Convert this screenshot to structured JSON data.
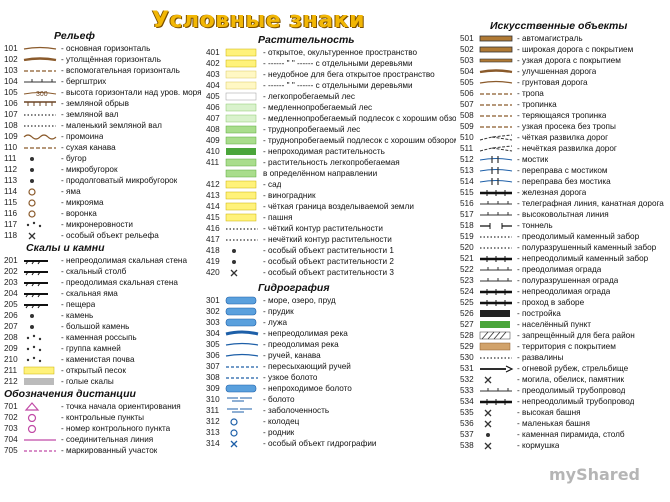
{
  "title": "Условные знаки",
  "watermark": "myShared",
  "colors": {
    "title": "#f2b705",
    "road": "#b07a35",
    "water": "#5aa0dd",
    "veg_light": "#fff27a",
    "veg_green": "#a9dd8c"
  },
  "relief": {
    "title": "Рельеф",
    "items": [
      {
        "num": "101",
        "label": "- основная горизонталь",
        "sym": "line"
      },
      {
        "num": "102",
        "label": "- утолщённая горизонталь",
        "sym": "thick"
      },
      {
        "num": "103",
        "label": "- вспомогательная горизонталь",
        "sym": "dash"
      },
      {
        "num": "104",
        "label": "- бергштрих",
        "sym": "tick"
      },
      {
        "num": "105",
        "label": "- высота горизонтали над уров. моря",
        "sym": "height",
        "sym_text": "300"
      },
      {
        "num": "106",
        "label": "- земляной обрыв",
        "sym": "cliff"
      },
      {
        "num": "107",
        "label": "- земляной вал",
        "sym": "dotted"
      },
      {
        "num": "108",
        "label": "- маленький земляной вал",
        "sym": "dotted"
      },
      {
        "num": "109",
        "label": "- промоина",
        "sym": "wave"
      },
      {
        "num": "110",
        "label": "- сухая канава",
        "sym": "dash"
      },
      {
        "num": "111",
        "label": "- бугор",
        "sym": "dot"
      },
      {
        "num": "112",
        "label": "- микробугорок",
        "sym": "dot"
      },
      {
        "num": "113",
        "label": "- продолговатый микробугорок",
        "sym": "dot"
      },
      {
        "num": "114",
        "label": "- яма",
        "sym": "ring"
      },
      {
        "num": "115",
        "label": "- микрояма",
        "sym": "ring"
      },
      {
        "num": "116",
        "label": "- воронка",
        "sym": "ring"
      },
      {
        "num": "117",
        "label": "- микронеровности",
        "sym": "dots"
      },
      {
        "num": "118",
        "label": "- особый объект рельефа",
        "sym": "cross"
      }
    ]
  },
  "rocks": {
    "title": "Скалы и камни",
    "items": [
      {
        "num": "201",
        "label": "- непреодолимая скальная стена",
        "sym": "rock"
      },
      {
        "num": "202",
        "label": "- скальный столб",
        "sym": "rock"
      },
      {
        "num": "203",
        "label": "- преодолимая скальная стена",
        "sym": "rock"
      },
      {
        "num": "204",
        "label": "- скальная яма",
        "sym": "rock"
      },
      {
        "num": "205",
        "label": "- пещера",
        "sym": "rock"
      },
      {
        "num": "206",
        "label": "- камень",
        "sym": "dot"
      },
      {
        "num": "207",
        "label": "- большой камень",
        "sym": "dot"
      },
      {
        "num": "208",
        "label": "- каменная россыпь",
        "sym": "dots"
      },
      {
        "num": "209",
        "label": "- группа камней",
        "sym": "dots"
      },
      {
        "num": "210",
        "label": "- каменистая почва",
        "sym": "dots"
      },
      {
        "num": "211",
        "label": "- открытый песок",
        "sym": "fill-yellow"
      },
      {
        "num": "212",
        "label": "- голые скалы",
        "sym": "fill-grey"
      }
    ]
  },
  "course": {
    "title": "Обозначения дистанции",
    "items": [
      {
        "num": "701",
        "label": "- точка начала ориентирования",
        "sym": "triangle"
      },
      {
        "num": "702",
        "label": "- контрольные пункты",
        "sym": "circle"
      },
      {
        "num": "703",
        "label": "- номер контрольного пункта",
        "sym": "circle"
      },
      {
        "num": "704",
        "label": "- соединительная линия",
        "sym": "pline"
      },
      {
        "num": "705",
        "label": "- маркированный участок",
        "sym": "pdash"
      }
    ]
  },
  "vegetation": {
    "title": "Растительность",
    "items": [
      {
        "num": "401",
        "label": "- открытое, окультуренное пространство",
        "sym": "fill-yellow"
      },
      {
        "num": "402",
        "label": "- ------ \" \" ------ с отдельными деревьями",
        "sym": "fill-yellow"
      },
      {
        "num": "403",
        "label": "- неудобное для бега открытое пространство",
        "sym": "fill-lyellow"
      },
      {
        "num": "404",
        "label": "- ------ \" \" ------ с отдельными деревьями",
        "sym": "fill-lyellow"
      },
      {
        "num": "405",
        "label": "- легкопробегаемый лес",
        "sym": "fill-white"
      },
      {
        "num": "406",
        "label": "- медленнопробегаемый лес",
        "sym": "fill-lgreen"
      },
      {
        "num": "407",
        "label": "- медленнопробегаемый подлесок с хорошим обзором",
        "sym": "fill-lgreen"
      },
      {
        "num": "408",
        "label": "- труднопробегаемый лес",
        "sym": "fill-green"
      },
      {
        "num": "409",
        "label": "- труднопробегаемый подлесок с хорошим обзором",
        "sym": "fill-green"
      },
      {
        "num": "410",
        "label": "- непроходимая растительность",
        "sym": "fill-dgreen"
      },
      {
        "num": "411",
        "label": "- растительность легкопробегаемая",
        "sym": "fill-green"
      },
      {
        "num": "",
        "label": "в определённом направлении",
        "sym": "fill-green"
      },
      {
        "num": "412",
        "label": "- сад",
        "sym": "fill-yellow"
      },
      {
        "num": "413",
        "label": "- виноградник",
        "sym": "fill-yellow"
      },
      {
        "num": "414",
        "label": "- чёткая граница возделываемой земли",
        "sym": "fill-yellow"
      },
      {
        "num": "415",
        "label": "- пашня",
        "sym": "fill-yellow"
      },
      {
        "num": "416",
        "label": "- чёткий контур растительности",
        "sym": "dotted"
      },
      {
        "num": "417",
        "label": "- нечёткий контур растительности",
        "sym": "dotted"
      },
      {
        "num": "418",
        "label": "- особый объект растительности 1",
        "sym": "dot"
      },
      {
        "num": "419",
        "label": "- особый объект растительности 2",
        "sym": "dot"
      },
      {
        "num": "420",
        "label": "- особый объект растительности 3",
        "sym": "cross"
      }
    ]
  },
  "hydro": {
    "title": "Гидрография",
    "items": [
      {
        "num": "301",
        "label": "- море, озеро, пруд",
        "sym": "water-fill"
      },
      {
        "num": "302",
        "label": "- прудик",
        "sym": "water-fill"
      },
      {
        "num": "303",
        "label": "- лужа",
        "sym": "water-fill"
      },
      {
        "num": "304",
        "label": "- непреодолимая река",
        "sym": "water-thick"
      },
      {
        "num": "305",
        "label": "- преодолимая река",
        "sym": "water-line"
      },
      {
        "num": "306",
        "label": "- ручей, канава",
        "sym": "water-line"
      },
      {
        "num": "307",
        "label": "- пересыхающий ручей",
        "sym": "water-dash"
      },
      {
        "num": "308",
        "label": "- узкое болото",
        "sym": "water-dash"
      },
      {
        "num": "309",
        "label": "- непроходимое болото",
        "sym": "water-fill"
      },
      {
        "num": "310",
        "label": "- болото",
        "sym": "water-hatch"
      },
      {
        "num": "311",
        "label": "- заболоченность",
        "sym": "water-hatch"
      },
      {
        "num": "312",
        "label": "- колодец",
        "sym": "water-ring"
      },
      {
        "num": "313",
        "label": "- родник",
        "sym": "water-ring"
      },
      {
        "num": "314",
        "label": "- особый объект гидрографии",
        "sym": "water-cross"
      }
    ]
  },
  "manmade": {
    "title": "Искусственные объекты",
    "items": [
      {
        "num": "501",
        "label": "- автомагистраль",
        "sym": "road-wide"
      },
      {
        "num": "502",
        "label": "- широкая дорога с покрытием",
        "sym": "road-wide"
      },
      {
        "num": "503",
        "label": "- узкая дорога с покрытием",
        "sym": "road"
      },
      {
        "num": "504",
        "label": "- улучшенная дорога",
        "sym": "thick"
      },
      {
        "num": "505",
        "label": "- грунтовая дорога",
        "sym": "line"
      },
      {
        "num": "506",
        "label": "- тропа",
        "sym": "dash"
      },
      {
        "num": "507",
        "label": "- тропинка",
        "sym": "dash"
      },
      {
        "num": "508",
        "label": "- теряющаяся тропинка",
        "sym": "dash"
      },
      {
        "num": "509",
        "label": "- узкая просека без тропы",
        "sym": "dash"
      },
      {
        "num": "510",
        "label": "- чёткая развилка дорог",
        "sym": "fork"
      },
      {
        "num": "511",
        "label": "- нечёткая развилка дорог",
        "sym": "fork"
      },
      {
        "num": "512",
        "label": "- мостик",
        "sym": "bridge"
      },
      {
        "num": "513",
        "label": "- переправа с мостиком",
        "sym": "bridge"
      },
      {
        "num": "514",
        "label": "- переправа без мостика",
        "sym": "bridge"
      },
      {
        "num": "515",
        "label": "- железная дорога",
        "sym": "rail"
      },
      {
        "num": "516",
        "label": "- телеграфная линия, канатная дорога",
        "sym": "tick"
      },
      {
        "num": "517",
        "label": "- высоковольтная линия",
        "sym": "tick"
      },
      {
        "num": "518",
        "label": "- тоннель",
        "sym": "tunnel"
      },
      {
        "num": "519",
        "label": "- преодолимый каменный забор",
        "sym": "dotted"
      },
      {
        "num": "520",
        "label": "- полуразрушенный каменный забор",
        "sym": "dotted"
      },
      {
        "num": "521",
        "label": "- непреодолимый каменный забор",
        "sym": "rail"
      },
      {
        "num": "522",
        "label": "- преодолимая ограда",
        "sym": "tick"
      },
      {
        "num": "523",
        "label": "- полуразрушенная ограда",
        "sym": "tick"
      },
      {
        "num": "524",
        "label": "- непреодолимая ограда",
        "sym": "rail"
      },
      {
        "num": "525",
        "label": "- проход в заборе",
        "sym": "rail"
      },
      {
        "num": "526",
        "label": "- постройка",
        "sym": "fill-black"
      },
      {
        "num": "527",
        "label": "- населённый пункт",
        "sym": "fill-dgreen"
      },
      {
        "num": "528",
        "label": "- запрещённый для бега район",
        "sym": "fill-hatch"
      },
      {
        "num": "529",
        "label": "- территория с покрытием",
        "sym": "fill-tan"
      },
      {
        "num": "530",
        "label": "- развалины",
        "sym": "dotted"
      },
      {
        "num": "531",
        "label": "- огневой рубеж, стрельбище",
        "sym": "fire"
      },
      {
        "num": "532",
        "label": "- могила, обелиск, памятник",
        "sym": "cross"
      },
      {
        "num": "533",
        "label": "- преодолимый трубопровод",
        "sym": "tick"
      },
      {
        "num": "534",
        "label": "- непреодолимый трубопровод",
        "sym": "rail"
      },
      {
        "num": "535",
        "label": "- высокая башня",
        "sym": "cross"
      },
      {
        "num": "536",
        "label": "- маленькая башня",
        "sym": "cross"
      },
      {
        "num": "537",
        "label": "- каменная пирамида, столб",
        "sym": "dot"
      },
      {
        "num": "538",
        "label": "- кормушка",
        "sym": "cross"
      }
    ]
  }
}
